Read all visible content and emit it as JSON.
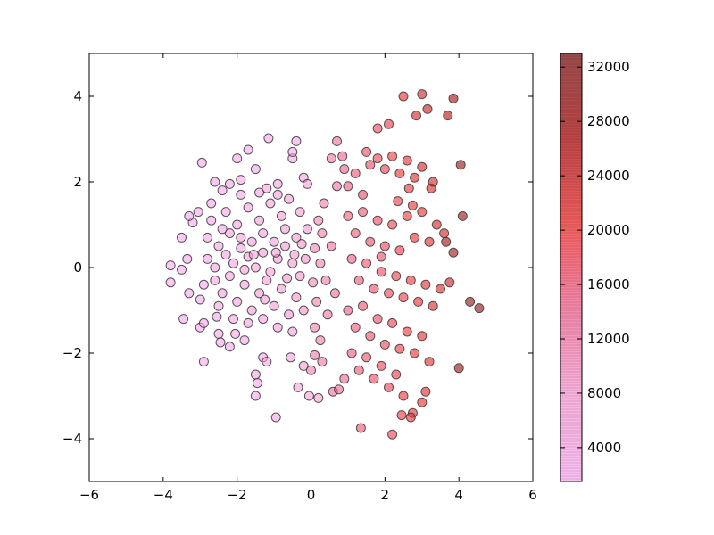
{
  "chart_data": {
    "type": "scatter",
    "title": "",
    "xlabel": "",
    "ylabel": "",
    "xlim": [
      -6,
      6
    ],
    "ylim": [
      -5,
      5
    ],
    "xticks": [
      -6,
      -4,
      -2,
      0,
      2,
      4,
      6
    ],
    "yticks": [
      -4,
      -2,
      0,
      2,
      4
    ],
    "grid": false,
    "legend": "none",
    "colormap": {
      "name": "spring-like pink-to-red",
      "range": [
        1500,
        33000
      ],
      "stops": [
        "#f7a8f0",
        "#f59ad2",
        "#f06090",
        "#ee2a2a",
        "#a80808",
        "#7a1010"
      ],
      "ticks": [
        4000,
        8000,
        12000,
        16000,
        20000,
        24000,
        28000,
        32000
      ]
    },
    "marker_edge_color": "#3a3a3a",
    "marker_alpha": 0.6,
    "point_count_note": "",
    "points": [
      [
        -2.95,
        2.45,
        3000
      ],
      [
        -2.0,
        2.55,
        3200
      ],
      [
        -1.7,
        2.75,
        3400
      ],
      [
        -1.15,
        3.02,
        2800
      ],
      [
        -0.4,
        2.95,
        3000
      ],
      [
        -0.5,
        2.55,
        3500
      ],
      [
        -0.5,
        2.7,
        3300
      ],
      [
        -1.5,
        2.3,
        3100
      ],
      [
        -2.6,
        2.0,
        2900
      ],
      [
        -2.4,
        1.8,
        3500
      ],
      [
        -2.2,
        1.95,
        4000
      ],
      [
        -1.9,
        2.05,
        4200
      ],
      [
        -1.2,
        1.85,
        4600
      ],
      [
        -0.9,
        1.95,
        4800
      ],
      [
        -0.2,
        2.1,
        5200
      ],
      [
        -0.1,
        1.95,
        6000
      ],
      [
        -3.2,
        1.05,
        2600
      ],
      [
        -3.05,
        1.3,
        3000
      ],
      [
        -2.7,
        1.5,
        3200
      ],
      [
        -3.3,
        1.2,
        2700
      ],
      [
        -3.5,
        0.7,
        2500
      ],
      [
        -3.8,
        0.05,
        2400
      ],
      [
        -3.5,
        -0.05,
        2600
      ],
      [
        -3.35,
        0.2,
        2800
      ],
      [
        -3.8,
        -0.35,
        2500
      ],
      [
        -3.3,
        -0.6,
        2700
      ],
      [
        -3.0,
        -0.75,
        2900
      ],
      [
        -3.45,
        -1.2,
        2800
      ],
      [
        -3.0,
        -1.4,
        2900
      ],
      [
        -2.9,
        -1.3,
        3100
      ],
      [
        -2.55,
        -1.15,
        3300
      ],
      [
        -2.5,
        -1.55,
        3200
      ],
      [
        -2.45,
        -1.75,
        3000
      ],
      [
        -2.2,
        -1.85,
        3200
      ],
      [
        -2.05,
        -1.55,
        3600
      ],
      [
        -1.8,
        -1.7,
        3800
      ],
      [
        -2.9,
        -2.2,
        2900
      ],
      [
        -1.3,
        -2.1,
        4200
      ],
      [
        -1.2,
        -2.2,
        4300
      ],
      [
        -1.5,
        -2.5,
        3800
      ],
      [
        -1.45,
        -2.7,
        3600
      ],
      [
        -1.5,
        -3.0,
        3400
      ],
      [
        -0.95,
        -3.5,
        4200
      ],
      [
        -0.55,
        -2.1,
        5200
      ],
      [
        -0.2,
        -2.3,
        6000
      ],
      [
        -0.35,
        -2.8,
        5800
      ],
      [
        -0.05,
        -3.0,
        6400
      ],
      [
        0.2,
        -3.05,
        7000
      ],
      [
        -2.8,
        0.7,
        3800
      ],
      [
        -2.5,
        0.5,
        4200
      ],
      [
        -2.3,
        0.3,
        4600
      ],
      [
        -2.1,
        0.1,
        5000
      ],
      [
        -1.9,
        0.45,
        5200
      ],
      [
        -1.7,
        0.25,
        5600
      ],
      [
        -1.5,
        0.0,
        6000
      ],
      [
        -1.3,
        0.35,
        6400
      ],
      [
        -1.1,
        -0.1,
        6800
      ],
      [
        -0.9,
        0.2,
        7200
      ],
      [
        -0.7,
        0.5,
        7600
      ],
      [
        -0.5,
        0.1,
        8000
      ],
      [
        -0.3,
        -0.2,
        8400
      ],
      [
        -2.6,
        -0.3,
        4400
      ],
      [
        -2.4,
        -0.6,
        4800
      ],
      [
        -2.2,
        -0.2,
        5200
      ],
      [
        -2.0,
        -0.8,
        5600
      ],
      [
        -1.8,
        -0.4,
        6000
      ],
      [
        -1.6,
        -1.0,
        6200
      ],
      [
        -1.4,
        -0.6,
        6600
      ],
      [
        -1.2,
        -0.3,
        7000
      ],
      [
        -1.0,
        -0.9,
        7200
      ],
      [
        -0.8,
        -0.5,
        7600
      ],
      [
        -0.6,
        -1.1,
        8000
      ],
      [
        -0.4,
        -0.7,
        8400
      ],
      [
        -0.2,
        -1.0,
        9000
      ],
      [
        -2.7,
        1.1,
        4000
      ],
      [
        -2.3,
        1.3,
        4400
      ],
      [
        -2.0,
        1.0,
        4800
      ],
      [
        -1.7,
        1.4,
        5200
      ],
      [
        -1.4,
        1.1,
        5600
      ],
      [
        -1.1,
        1.5,
        6000
      ],
      [
        -0.8,
        1.2,
        6400
      ],
      [
        -0.6,
        1.6,
        6800
      ],
      [
        -0.3,
        1.3,
        7200
      ],
      [
        -0.1,
        0.9,
        7800
      ],
      [
        -2.2,
        0.8,
        5000
      ],
      [
        -1.9,
        0.7,
        5400
      ],
      [
        -1.6,
        0.6,
        5800
      ],
      [
        -1.3,
        0.8,
        6200
      ],
      [
        -1.0,
        0.6,
        6600
      ],
      [
        -0.7,
        0.9,
        7000
      ],
      [
        -0.4,
        0.7,
        7400
      ],
      [
        -2.5,
        -0.9,
        4600
      ],
      [
        -2.1,
        -1.2,
        5000
      ],
      [
        -1.7,
        -1.3,
        5400
      ],
      [
        -1.3,
        -1.2,
        5800
      ],
      [
        -0.9,
        -1.4,
        6200
      ],
      [
        -0.5,
        -1.5,
        6800
      ],
      [
        -1.9,
        1.7,
        4600
      ],
      [
        -1.4,
        1.75,
        5000
      ],
      [
        -0.9,
        1.7,
        5600
      ],
      [
        -2.8,
        0.2,
        3800
      ],
      [
        -2.9,
        -0.4,
        3600
      ],
      [
        -2.6,
        0.0,
        4200
      ],
      [
        -2.4,
        0.9,
        4400
      ],
      [
        -1.8,
        -0.05,
        5800
      ],
      [
        -1.55,
        0.3,
        6000
      ],
      [
        -1.25,
        -0.75,
        6600
      ],
      [
        -0.95,
        0.35,
        7000
      ],
      [
        -0.65,
        -0.25,
        7600
      ],
      [
        -0.45,
        0.3,
        8200
      ],
      [
        -0.25,
        0.55,
        8600
      ],
      [
        -0.15,
        0.2,
        9200
      ],
      [
        0.05,
        -0.35,
        10000
      ],
      [
        0.1,
        0.45,
        10400
      ],
      [
        0.25,
        0.1,
        11000
      ],
      [
        0.15,
        -0.8,
        10800
      ],
      [
        0.3,
        0.8,
        11200
      ],
      [
        0.4,
        -0.3,
        11800
      ],
      [
        0.2,
        1.1,
        10600
      ],
      [
        0.35,
        1.5,
        11400
      ],
      [
        0.45,
        -1.1,
        12000
      ],
      [
        0.55,
        0.5,
        12400
      ],
      [
        0.65,
        -0.6,
        13000
      ],
      [
        0.7,
        1.9,
        12600
      ],
      [
        0.55,
        2.55,
        12000
      ],
      [
        0.7,
        2.95,
        13000
      ],
      [
        0.85,
        2.6,
        14000
      ],
      [
        0.9,
        2.3,
        14600
      ],
      [
        0.1,
        -1.4,
        11200
      ],
      [
        0.25,
        -1.7,
        11600
      ],
      [
        0.1,
        -2.05,
        11800
      ],
      [
        0.0,
        -2.4,
        11400
      ],
      [
        0.3,
        -2.2,
        12200
      ],
      [
        0.6,
        -2.9,
        13000
      ],
      [
        0.75,
        -2.85,
        13600
      ],
      [
        0.9,
        -2.6,
        14200
      ],
      [
        1.0,
        1.9,
        15200
      ],
      [
        1.2,
        2.2,
        16000
      ],
      [
        1.4,
        1.7,
        16800
      ],
      [
        1.6,
        2.4,
        17400
      ],
      [
        1.8,
        2.55,
        18200
      ],
      [
        2.0,
        2.3,
        18800
      ],
      [
        2.2,
        2.6,
        19400
      ],
      [
        2.4,
        2.2,
        20200
      ],
      [
        2.6,
        2.5,
        21000
      ],
      [
        2.8,
        2.1,
        21800
      ],
      [
        3.0,
        2.35,
        22600
      ],
      [
        1.5,
        2.7,
        17000
      ],
      [
        1.8,
        3.25,
        18000
      ],
      [
        2.1,
        3.35,
        19000
      ],
      [
        2.5,
        4.0,
        21000
      ],
      [
        3.0,
        4.05,
        23000
      ],
      [
        3.15,
        3.7,
        24000
      ],
      [
        2.85,
        3.55,
        22800
      ],
      [
        3.7,
        3.55,
        26000
      ],
      [
        3.85,
        3.95,
        27000
      ],
      [
        4.05,
        2.4,
        29000
      ],
      [
        3.85,
        0.35,
        28000
      ],
      [
        4.1,
        1.2,
        29500
      ],
      [
        3.65,
        0.6,
        27200
      ],
      [
        1.0,
        1.2,
        15000
      ],
      [
        1.2,
        0.8,
        15600
      ],
      [
        1.4,
        1.3,
        16200
      ],
      [
        1.6,
        0.6,
        16800
      ],
      [
        1.8,
        1.1,
        17400
      ],
      [
        2.0,
        0.5,
        18000
      ],
      [
        2.2,
        1.0,
        18600
      ],
      [
        2.4,
        0.4,
        19200
      ],
      [
        2.6,
        1.2,
        19800
      ],
      [
        2.8,
        0.7,
        20400
      ],
      [
        3.0,
        1.3,
        21000
      ],
      [
        3.2,
        0.6,
        21600
      ],
      [
        3.4,
        1.0,
        22200
      ],
      [
        3.6,
        0.8,
        23000
      ],
      [
        1.1,
        0.2,
        15200
      ],
      [
        1.3,
        -0.3,
        15800
      ],
      [
        1.5,
        0.1,
        16400
      ],
      [
        1.7,
        -0.5,
        17000
      ],
      [
        1.9,
        -0.1,
        17600
      ],
      [
        2.1,
        -0.6,
        18200
      ],
      [
        2.3,
        -0.2,
        18800
      ],
      [
        2.5,
        -0.7,
        19400
      ],
      [
        2.7,
        -0.3,
        20000
      ],
      [
        2.9,
        -0.8,
        20600
      ],
      [
        3.1,
        -0.4,
        21200
      ],
      [
        3.3,
        -0.9,
        21800
      ],
      [
        3.5,
        -0.5,
        22400
      ],
      [
        3.75,
        -0.35,
        23200
      ],
      [
        4.3,
        -0.8,
        30000
      ],
      [
        4.55,
        -0.95,
        31000
      ],
      [
        1.0,
        -1.0,
        15000
      ],
      [
        1.2,
        -1.4,
        15600
      ],
      [
        1.4,
        -0.9,
        16200
      ],
      [
        1.6,
        -1.6,
        16800
      ],
      [
        1.8,
        -1.2,
        17400
      ],
      [
        2.0,
        -1.8,
        18000
      ],
      [
        2.2,
        -1.3,
        18600
      ],
      [
        2.4,
        -1.9,
        19200
      ],
      [
        2.6,
        -1.5,
        19800
      ],
      [
        2.8,
        -2.0,
        20400
      ],
      [
        3.0,
        -1.6,
        21000
      ],
      [
        3.2,
        -2.2,
        21600
      ],
      [
        1.1,
        -2.0,
        15400
      ],
      [
        1.3,
        -2.4,
        16000
      ],
      [
        1.5,
        -2.1,
        16600
      ],
      [
        1.7,
        -2.6,
        17200
      ],
      [
        1.9,
        -2.3,
        17800
      ],
      [
        2.1,
        -2.8,
        18400
      ],
      [
        2.3,
        -2.5,
        19000
      ],
      [
        2.5,
        -3.0,
        19600
      ],
      [
        2.75,
        -3.4,
        20600
      ],
      [
        2.7,
        -3.5,
        20200
      ],
      [
        2.45,
        -3.45,
        19800
      ],
      [
        3.1,
        -2.9,
        21400
      ],
      [
        3.0,
        -3.15,
        21000
      ],
      [
        1.35,
        -3.75,
        16400
      ],
      [
        2.2,
        -3.9,
        18600
      ],
      [
        4.0,
        -2.35,
        29000
      ],
      [
        1.9,
        0.25,
        17000
      ],
      [
        2.35,
        1.55,
        19000
      ],
      [
        2.65,
        1.85,
        20400
      ],
      [
        3.25,
        1.85,
        22000
      ],
      [
        3.3,
        2.0,
        22600
      ],
      [
        2.75,
        1.45,
        20600
      ]
    ],
    "colorbar_bar_note": ""
  }
}
